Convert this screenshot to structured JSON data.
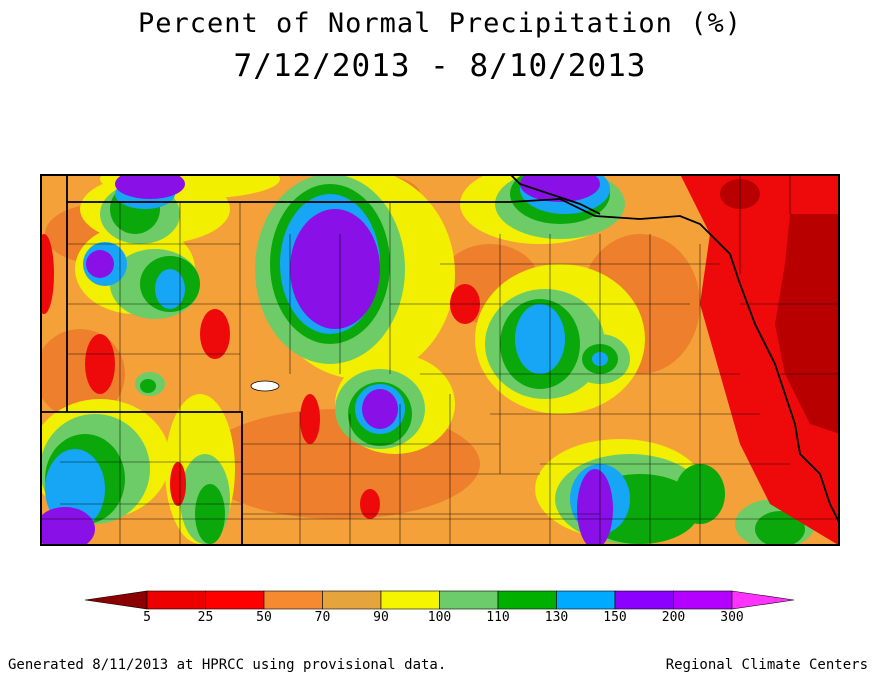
{
  "title": "Percent of Normal Precipitation (%)",
  "date_range": "7/12/2013 - 8/10/2013",
  "legend": {
    "ticks": [
      "5",
      "25",
      "50",
      "70",
      "90",
      "100",
      "110",
      "130",
      "150",
      "200",
      "300"
    ],
    "colors": [
      "#8b0000",
      "#ef0000",
      "#ff0000",
      "#f58a31",
      "#e6a43c",
      "#f5f500",
      "#6ccc6c",
      "#00b000",
      "#00aaff",
      "#8c00ff",
      "#b300ff",
      "#ff33ff"
    ]
  },
  "footer_left": "Generated 8/11/2013 at HPRCC using provisional data.",
  "footer_right": "Regional Climate Centers",
  "map_colors": {
    "base": "#f5a13a",
    "orange_dark": "#ee7f2d",
    "yellow": "#f2ef00",
    "light_green": "#6dcc67",
    "green": "#0aa80a",
    "blue": "#16a6f5",
    "purple": "#8a10e8",
    "red": "#ee0a0a",
    "dark_red": "#b80000"
  }
}
